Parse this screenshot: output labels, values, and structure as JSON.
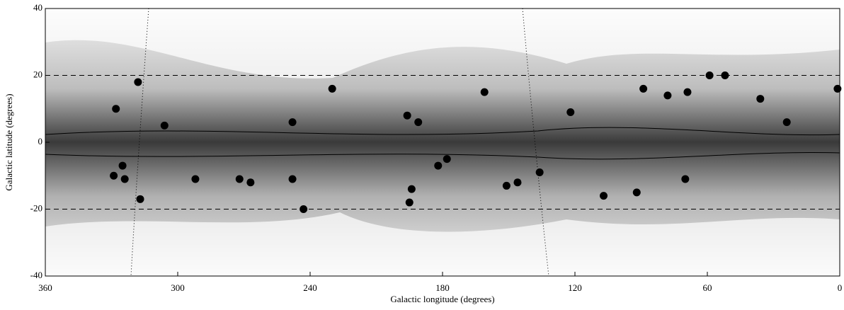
{
  "chart_data": {
    "type": "scatter",
    "xlabel": "Galactic longitude (degrees)",
    "ylabel": "Galactic latitude (degrees)",
    "xlim": [
      360,
      0
    ],
    "xticks": [
      360,
      300,
      240,
      180,
      120,
      60,
      0
    ],
    "ylim": [
      -40,
      40
    ],
    "yticks": [
      40,
      20,
      0,
      -20,
      -40
    ],
    "hlines": [
      20,
      -20
    ],
    "color": "#000000",
    "x": [
      318,
      328,
      306,
      329,
      325,
      324,
      317,
      292,
      272,
      267,
      248,
      248,
      243,
      230,
      196,
      194,
      195,
      191,
      182,
      178,
      161,
      151,
      146,
      136,
      122,
      107,
      92,
      89,
      78,
      70,
      69,
      59,
      52,
      36,
      24,
      1
    ],
    "values": [
      18,
      10,
      5,
      -10,
      -7,
      -11,
      -17,
      -11,
      -11,
      -12,
      6,
      -11,
      -20,
      16,
      8,
      -14,
      -18,
      6,
      -7,
      -5,
      15,
      -13,
      -12,
      -9,
      9,
      -16,
      -15,
      16,
      14,
      -11,
      15,
      20,
      20,
      13,
      6,
      16
    ]
  }
}
